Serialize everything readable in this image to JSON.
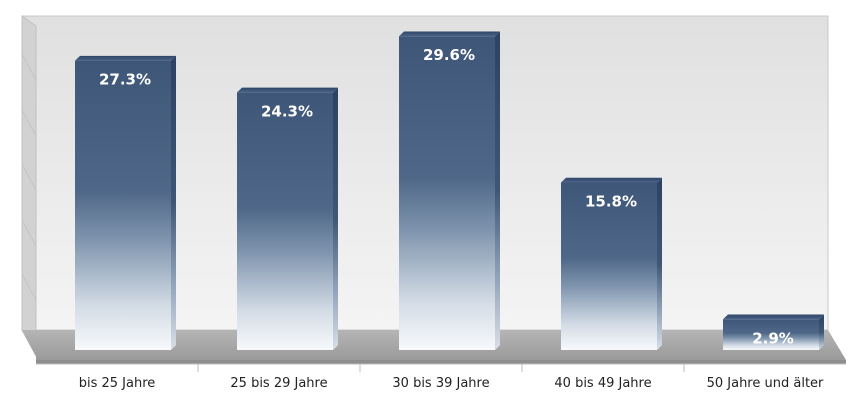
{
  "chart_data": {
    "type": "bar",
    "categories": [
      "bis 25 Jahre",
      "25 bis 29 Jahre",
      "30 bis 39 Jahre",
      "40 bis 49 Jahre",
      "50 Jahre und älter"
    ],
    "values": [
      27.3,
      24.3,
      29.6,
      15.8,
      2.9
    ],
    "value_labels": [
      "27.3%",
      "24.3%",
      "29.6%",
      "15.8%",
      "2.9%"
    ],
    "title": "",
    "xlabel": "",
    "ylabel": "",
    "ylim": [
      0,
      30
    ],
    "grid": true,
    "legend": "none",
    "style": "3d-column",
    "colors": {
      "bar_top": "#3f5778",
      "bar_mid": "#7d93ad",
      "bar_bottom": "#ffffff",
      "label": "#ffffff",
      "floor": "#a8a8a8",
      "wall": "#e6e6e6"
    }
  }
}
